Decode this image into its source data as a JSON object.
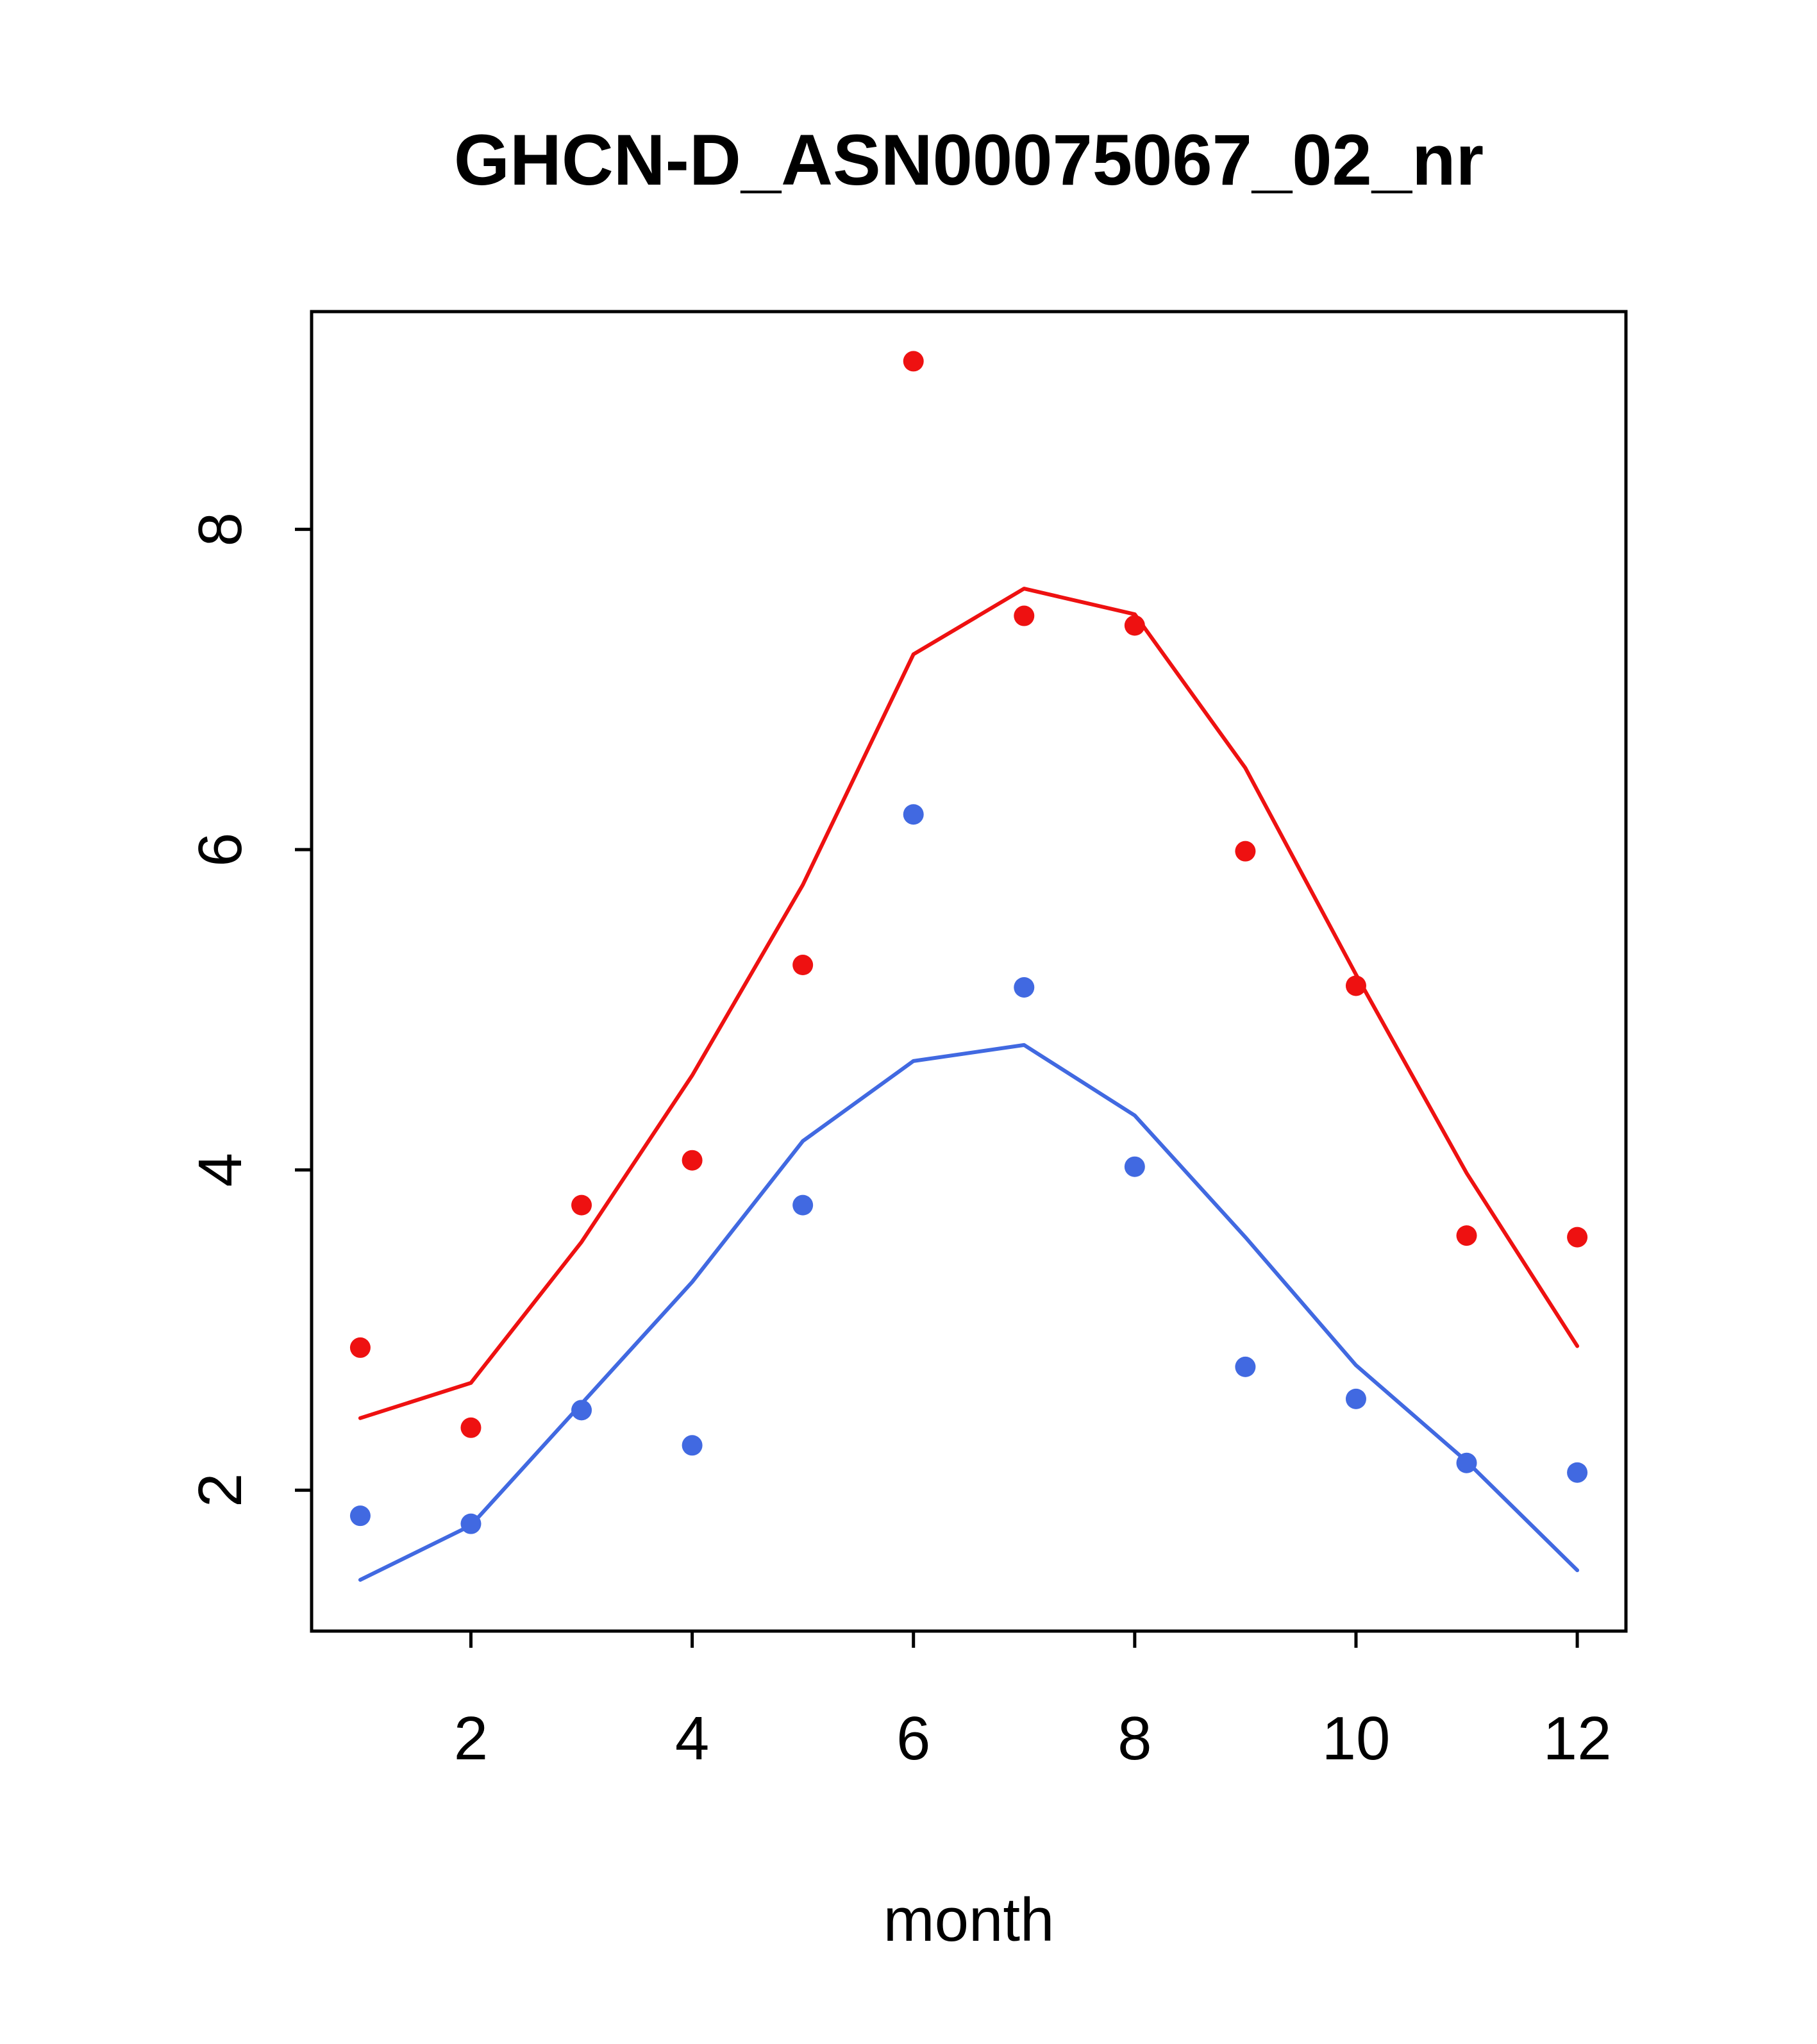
{
  "page": {
    "background": "#ffffff"
  },
  "chart_data": {
    "type": "scatter",
    "title": "GHCN-D_ASN00075067_02_nr",
    "xlabel": "month",
    "ylabel": "",
    "x": [
      1,
      2,
      3,
      4,
      5,
      6,
      7,
      8,
      9,
      10,
      11,
      12
    ],
    "xlim": [
      0.56,
      12.44
    ],
    "ylim": [
      1.12,
      9.36
    ],
    "xticks": [
      2,
      4,
      6,
      8,
      10,
      12
    ],
    "yticks": [
      2,
      4,
      6,
      8
    ],
    "grid": false,
    "legend": "none",
    "series": [
      {
        "name": "red-points",
        "style": "points",
        "color": "#ee1111",
        "values": [
          2.89,
          2.39,
          3.78,
          4.06,
          5.28,
          9.05,
          7.46,
          7.4,
          5.99,
          5.15,
          3.59,
          3.58
        ]
      },
      {
        "name": "red-line",
        "style": "line",
        "color": "#ee1111",
        "values": [
          2.45,
          2.67,
          3.55,
          4.59,
          5.78,
          7.22,
          7.63,
          7.47,
          6.51,
          5.22,
          3.98,
          2.9
        ]
      },
      {
        "name": "blue-points",
        "style": "points",
        "color": "#4169e1",
        "values": [
          1.84,
          1.79,
          2.5,
          2.28,
          3.78,
          6.22,
          5.14,
          4.02,
          2.77,
          2.57,
          2.17,
          2.11
        ]
      },
      {
        "name": "blue-line",
        "style": "line",
        "color": "#4169e1",
        "values": [
          1.44,
          1.78,
          2.54,
          3.3,
          4.18,
          4.68,
          4.78,
          4.34,
          3.58,
          2.78,
          2.18,
          1.5
        ]
      }
    ]
  },
  "layout_hints": {
    "point_radius": 16,
    "line_width": 6,
    "tick_length": 26,
    "tick_font_size": 96,
    "box_stroke": 5
  }
}
